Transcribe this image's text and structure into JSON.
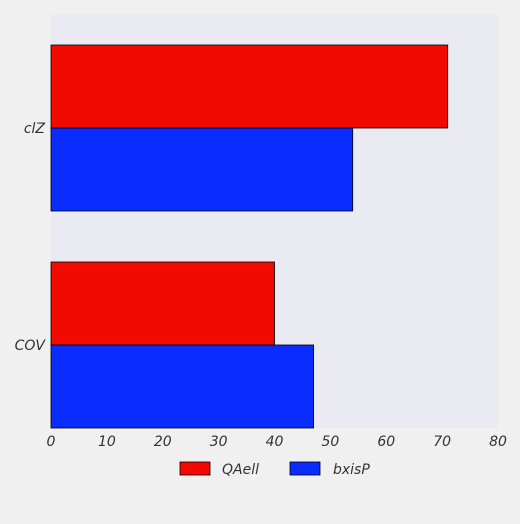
{
  "chart_data": {
    "type": "bar",
    "orientation": "horizontal",
    "categories": [
      "clZ",
      "COV"
    ],
    "series": [
      {
        "name": "QAell",
        "values": [
          71,
          40
        ],
        "color": "#f20a00"
      },
      {
        "name": "bxisP",
        "values": [
          54,
          47
        ],
        "color": "#0a2cff"
      }
    ],
    "xlim": [
      0,
      80
    ],
    "xticks": [
      "0",
      "10",
      "20",
      "30",
      "40",
      "50",
      "60",
      "70",
      "80"
    ],
    "grid": false,
    "legend_position": "bottom-center",
    "plot_background": "#eaeaf2",
    "page_background": "#f0f0f0"
  }
}
